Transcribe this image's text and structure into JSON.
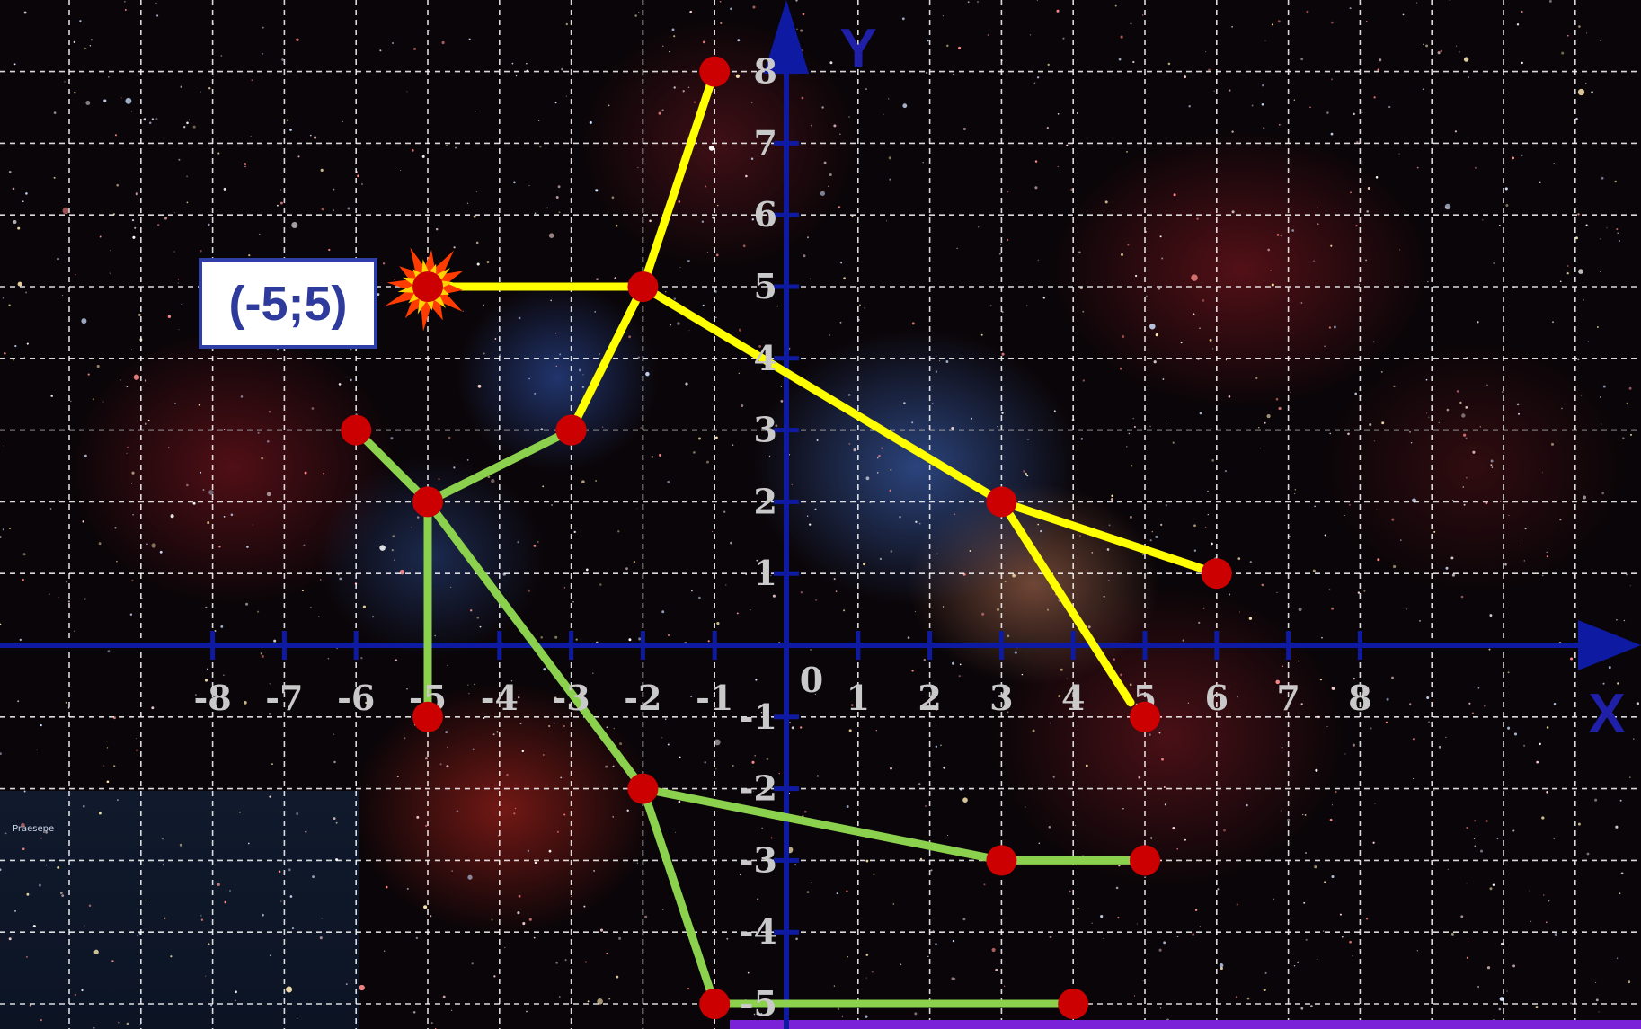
{
  "highlight_label": "(-5;5)",
  "inset": {
    "caption": "Praesepe"
  },
  "colors": {
    "axis": "#0f1aa3",
    "grid": "#ffffff",
    "yellow_line": "#ffff00",
    "green_line": "#8bd14d",
    "star_point": "#cc0000",
    "label_border": "#2e3fa8",
    "label_text": "#2e3a9c",
    "bottom_strip": "#7a22d8"
  },
  "chart_data": {
    "type": "scatter",
    "xlabel": "X",
    "ylabel": "Y",
    "origin_label": "0",
    "xlim": [
      -11,
      11.8
    ],
    "ylim": [
      -5.2,
      8.9
    ],
    "grid": true,
    "x_ticks": [
      "-8",
      "-7",
      "-6",
      "-5",
      "-4",
      "-3",
      "-2",
      "-1",
      "1",
      "2",
      "3",
      "4",
      "5",
      "6",
      "7",
      "8"
    ],
    "y_ticks": [
      "-5",
      "-4",
      "-3",
      "-2",
      "-1",
      "1",
      "2",
      "3",
      "4",
      "5",
      "6",
      "7",
      "8"
    ],
    "highlight_point": [
      -5,
      5
    ],
    "series": [
      {
        "color": "yellow",
        "points": [
          [
            -1,
            8
          ],
          [
            -5,
            5
          ],
          [
            -2,
            5
          ],
          [
            -3,
            3
          ],
          [
            3,
            2
          ],
          [
            6,
            1
          ],
          [
            5,
            -1
          ]
        ],
        "segments": [
          [
            [
              -5,
              5
            ],
            [
              -2,
              5
            ]
          ],
          [
            [
              -1,
              8
            ],
            [
              -2,
              5
            ]
          ],
          [
            [
              -2,
              5
            ],
            [
              -3,
              3
            ]
          ],
          [
            [
              -2,
              5
            ],
            [
              3,
              2
            ]
          ],
          [
            [
              3,
              2
            ],
            [
              6,
              1
            ]
          ],
          [
            [
              3,
              2
            ],
            [
              4.8,
              -0.8
            ]
          ]
        ]
      },
      {
        "color": "green",
        "points": [
          [
            -6,
            3
          ],
          [
            -5,
            2
          ],
          [
            -3,
            3
          ],
          [
            -5,
            -1
          ],
          [
            -2,
            -2
          ],
          [
            3,
            -3
          ],
          [
            5,
            -3
          ],
          [
            -1,
            -5
          ],
          [
            4,
            -5
          ]
        ],
        "segments": [
          [
            [
              -6,
              3
            ],
            [
              -5,
              2
            ]
          ],
          [
            [
              -5,
              2
            ],
            [
              -3,
              3
            ]
          ],
          [
            [
              -5,
              2
            ],
            [
              -5,
              -1
            ]
          ],
          [
            [
              -5,
              2
            ],
            [
              -2,
              -2
            ]
          ],
          [
            [
              -2,
              -2
            ],
            [
              3,
              -3
            ]
          ],
          [
            [
              3,
              -3
            ],
            [
              5,
              -3
            ]
          ],
          [
            [
              -2,
              -2
            ],
            [
              -1,
              -5
            ]
          ],
          [
            [
              -1,
              -5
            ],
            [
              4,
              -5
            ]
          ]
        ]
      }
    ]
  }
}
